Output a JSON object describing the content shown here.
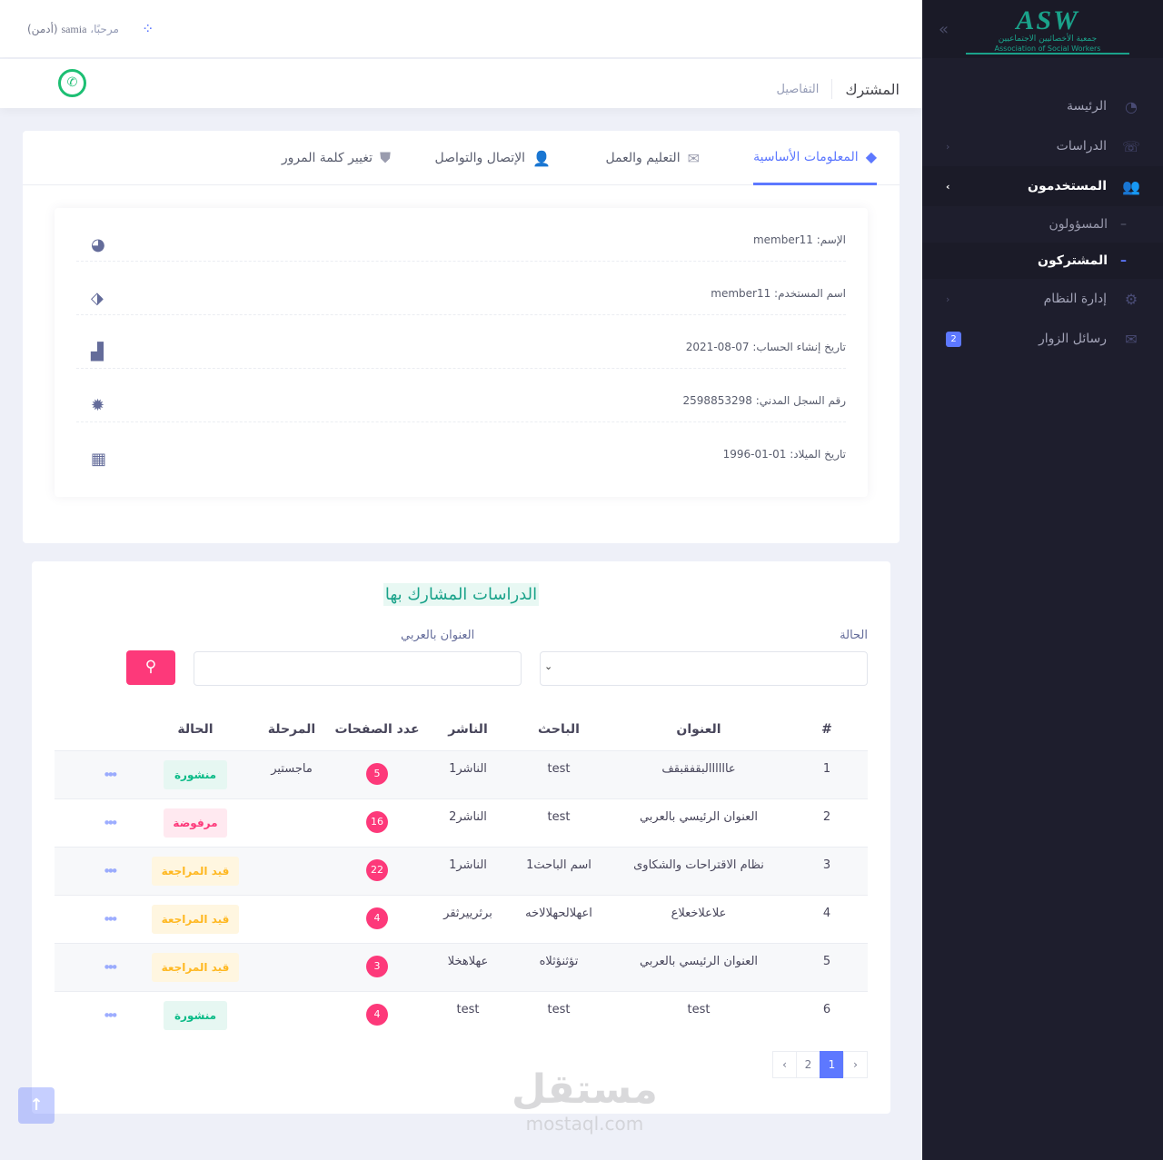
{
  "topbar": {
    "greeting": "مرحبًا،",
    "user": "samia",
    "role": "(أدمن)"
  },
  "subheader": {
    "title": "المشترك",
    "breadcrumb": "التفاصيل"
  },
  "sidebar": {
    "logo": {
      "big": "ASW",
      "ar": "جمعية الأخصائيين الاجتماعيين",
      "en": "Association of Social Workers"
    },
    "items": [
      {
        "label": "الرئيسة",
        "icon": "dashboard-icon"
      },
      {
        "label": "الدراسات",
        "icon": "studies-icon"
      },
      {
        "label": "المستخدمون",
        "icon": "users-icon"
      },
      {
        "label": "المسؤولون"
      },
      {
        "label": "المشتركون"
      },
      {
        "label": "إدارة النظام",
        "icon": "gears-icon"
      },
      {
        "label": "رسائل الزوار",
        "icon": "envelope-icon",
        "badge": "2"
      }
    ]
  },
  "tabs": [
    {
      "label": "المعلومات الأساسية",
      "icon": "diamond-icon"
    },
    {
      "label": "التعليم والعمل",
      "icon": "envelope-icon"
    },
    {
      "label": "الإتصال والتواصل",
      "icon": "user-icon"
    },
    {
      "label": "تغيير كلمة المرور",
      "icon": "shield-icon"
    }
  ],
  "info": [
    {
      "text": "الإسم: member11",
      "icon": "pie-chart-icon"
    },
    {
      "text": "اسم المستخدم: member11",
      "icon": "tag-icon"
    },
    {
      "text": "تاريخ إنشاء الحساب: 07-08-2021",
      "icon": "chart-icon"
    },
    {
      "text": "رقم السجل المدني: 2598853298",
      "icon": "badge-icon"
    },
    {
      "text": "تاريخ الميلاد: 01-01-1996",
      "icon": "calendar-icon"
    }
  ],
  "studies": {
    "title": "الدراسات المشارك بها",
    "filters": {
      "status_label": "الحالة",
      "title_label": "العنوان بالعربي",
      "title_value": ""
    },
    "columns": [
      "#",
      "العنوان",
      "الباحث",
      "الناشر",
      "عدد الصفحات",
      "المرحلة",
      "الحالة"
    ],
    "rows": [
      {
        "n": "1",
        "title": "عاااااالبقفقبقف",
        "researcher": "test",
        "publisher": "الناشر1",
        "pages": "5",
        "stage": "ماجستير",
        "status": "منشورة",
        "type": "green"
      },
      {
        "n": "2",
        "title": "العنوان الرئيسي بالعربي",
        "researcher": "test",
        "publisher": "الناشر2",
        "pages": "16",
        "stage": "",
        "status": "مرفوضة",
        "type": "red"
      },
      {
        "n": "3",
        "title": "نظام الاقتراحات والشكاوى",
        "researcher": "اسم الباحث1",
        "publisher": "الناشر1",
        "pages": "22",
        "stage": "",
        "status": "قيد المراجعة",
        "type": "yellow"
      },
      {
        "n": "4",
        "title": "علاعلاخعلاع",
        "researcher": "اعهلالحهلالاخه",
        "publisher": "برثرييرثقر",
        "pages": "4",
        "stage": "",
        "status": "قيد المراجعة",
        "type": "yellow"
      },
      {
        "n": "5",
        "title": "العنوان الرئيسي بالعربي",
        "researcher": "تؤثنؤثلاه",
        "publisher": "عهلاهخلا",
        "pages": "3",
        "stage": "",
        "status": "قيد المراجعة",
        "type": "yellow"
      },
      {
        "n": "6",
        "title": "test",
        "researcher": "test",
        "publisher": "test",
        "pages": "4",
        "stage": "",
        "status": "منشورة",
        "type": "green"
      }
    ],
    "pagination": {
      "prev": "‹",
      "pages": [
        "2",
        "1"
      ],
      "current": "1",
      "next": "›"
    }
  },
  "watermark": {
    "ar": "مستقل",
    "en": "mostaql.com"
  },
  "colors": {
    "accent": "#5d78ff",
    "sidebar": "#1e1e2d",
    "danger": "#fd397a",
    "success": "#0abb87",
    "warning": "#ffb822"
  }
}
